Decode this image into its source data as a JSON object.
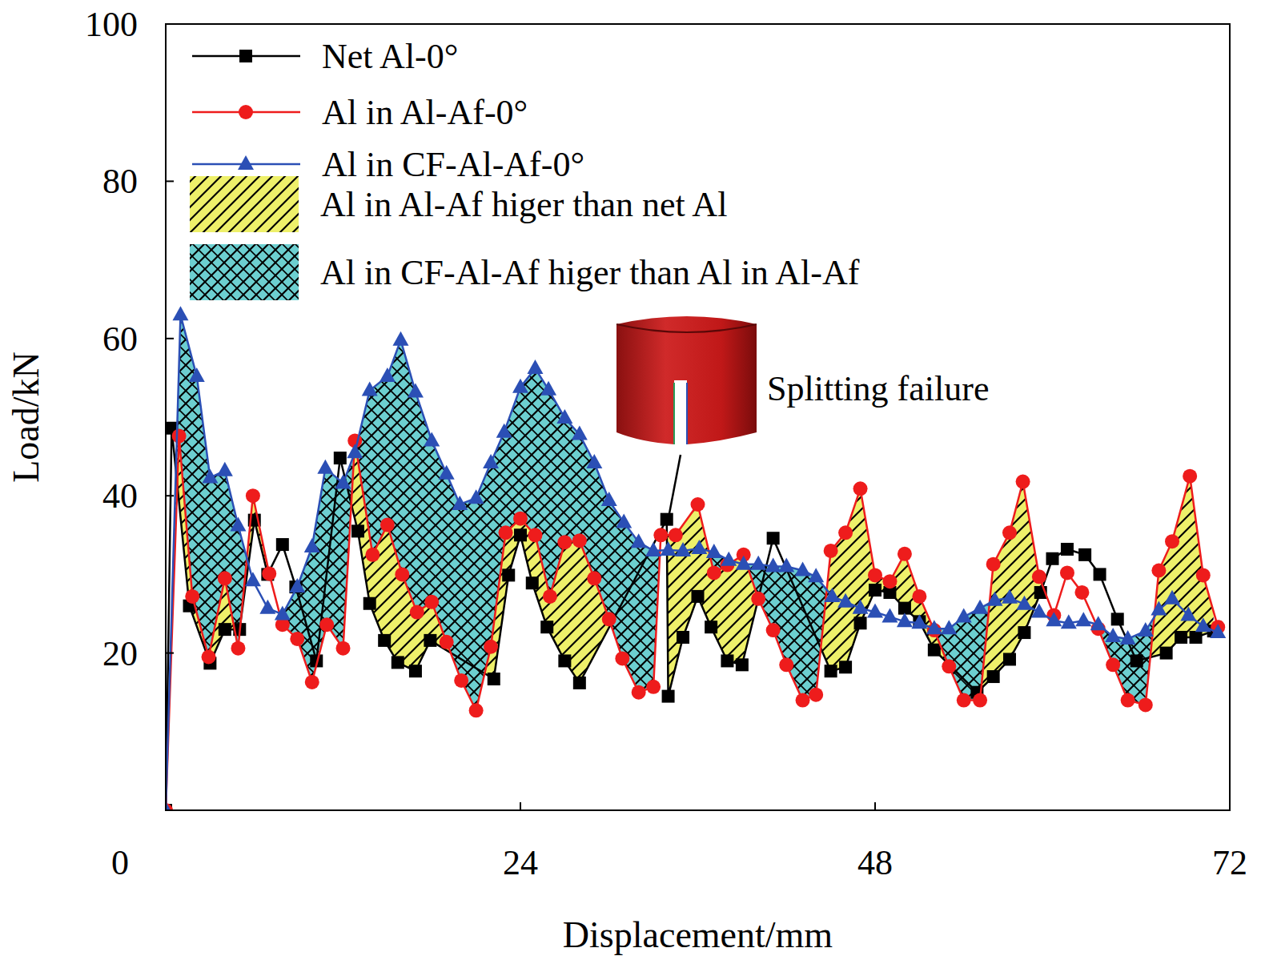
{
  "chart_data": {
    "type": "line",
    "x_label": "Displacement/mm",
    "y_label": "Load/kN",
    "xlim": [
      0,
      72
    ],
    "xticks": [
      0,
      24,
      48,
      72
    ],
    "ylim": [
      0,
      100
    ],
    "yticks": [
      20,
      40,
      60,
      80,
      100
    ],
    "legend": "upper left",
    "grid": false,
    "series": [
      {
        "name": "Net Al-0°",
        "color": "#000000",
        "marker": "square",
        "x": [
          0,
          0.4,
          1.6,
          3.0,
          4.0,
          5.0,
          6.0,
          6.9,
          7.9,
          8.8,
          10.2,
          11.8,
          13.0,
          13.8,
          14.8,
          15.7,
          16.9,
          17.9,
          22.2,
          23.2,
          24.0,
          24.8,
          25.8,
          27.0,
          28.0,
          33.9,
          34.0,
          35.0,
          36.0,
          36.9,
          38.0,
          39.0,
          41.1,
          45.0,
          46.0,
          47.0,
          48.0,
          49.0,
          50.0,
          51.0,
          52.0,
          54.9,
          56.0,
          57.1,
          58.1,
          59.2,
          60.0,
          61.0,
          62.2,
          63.2,
          64.4,
          65.7,
          67.7,
          68.7,
          69.7,
          70.9
        ],
        "values": [
          0,
          48.6,
          26,
          18.7,
          23,
          23,
          36.9,
          30,
          33.8,
          28.4,
          19,
          44.8,
          35.5,
          26.3,
          21.6,
          18.8,
          17.7,
          21.6,
          16.7,
          29.9,
          35,
          28.9,
          23.3,
          19,
          16.2,
          37,
          14.5,
          22,
          27.2,
          23.3,
          19,
          18.5,
          34.6,
          17.7,
          18.2,
          23.8,
          28,
          27.7,
          25.7,
          24,
          20.4,
          15,
          17,
          19.2,
          22.6,
          27.7,
          32,
          33.2,
          32.5,
          30,
          24.3,
          19,
          20,
          22,
          22,
          22.8
        ]
      },
      {
        "name": "Al in Al-Af-0°",
        "color": "#ee1c1c",
        "marker": "circle",
        "x": [
          0,
          0.9,
          1.8,
          2.9,
          4.0,
          4.9,
          5.9,
          7.0,
          7.9,
          8.9,
          9.9,
          10.9,
          12.0,
          12.8,
          14.0,
          15.0,
          16.0,
          17.0,
          18.0,
          19.0,
          20.0,
          21.0,
          22.0,
          23.0,
          24.0,
          25.0,
          26.0,
          27.0,
          28.0,
          29.0,
          30.0,
          30.9,
          32.0,
          33.0,
          33.5,
          34.5,
          36.0,
          37.1,
          38.0,
          39.1,
          40.1,
          41.1,
          42.0,
          43.1,
          44.0,
          45.0,
          46.0,
          47.0,
          48.0,
          49.0,
          50.0,
          51.0,
          52.0,
          53.0,
          54.0,
          55.1,
          56.0,
          57.1,
          58.0,
          59.1,
          60.1,
          61.0,
          62.0,
          63.1,
          64.1,
          65.1,
          66.3,
          67.2,
          68.1,
          69.3,
          70.2,
          71.2
        ],
        "values": [
          0,
          47.6,
          27.2,
          19.5,
          29.5,
          20.6,
          40,
          30.1,
          23.6,
          21.8,
          16.3,
          23.6,
          20.6,
          47,
          32.5,
          36.3,
          30,
          25.2,
          26.5,
          21.4,
          16.5,
          12.7,
          20.8,
          35.3,
          37.1,
          35,
          27.2,
          34.1,
          34.3,
          29.5,
          24.3,
          19.3,
          15,
          15.7,
          35,
          35,
          38.9,
          30.2,
          31.2,
          32.5,
          26.9,
          22.9,
          18.5,
          14,
          14.7,
          33,
          35.3,
          40.9,
          29.9,
          29.1,
          32.6,
          27.2,
          22.9,
          18.3,
          14,
          14,
          31.3,
          35.3,
          41.8,
          29.7,
          24.8,
          30.2,
          27.7,
          23.1,
          18.5,
          14,
          13.4,
          30.5,
          34.2,
          42.5,
          29.9,
          23.3
        ]
      },
      {
        "name": "Al in CF-Al-Af-0°",
        "color": "#2b4fb5",
        "marker": "triangle",
        "x": [
          0,
          1.0,
          2.1,
          3.0,
          4.0,
          4.9,
          5.9,
          6.9,
          7.9,
          8.9,
          9.9,
          10.8,
          12.0,
          12.8,
          13.8,
          15.0,
          15.9,
          16.9,
          18.0,
          19.0,
          19.9,
          21.0,
          22.0,
          22.9,
          24.0,
          25.0,
          25.9,
          27.0,
          28.0,
          29.0,
          30.0,
          31.0,
          32.0,
          33.0,
          34.0,
          35.0,
          36.1,
          37.1,
          38.1,
          39.1,
          40.1,
          41.1,
          42.0,
          43.1,
          44.0,
          45.1,
          46.0,
          47.0,
          48.0,
          49.0,
          50.0,
          51.0,
          52.0,
          53.0,
          54.0,
          55.1,
          56.1,
          57.1,
          58.1,
          59.1,
          60.1,
          61.1,
          62.1,
          63.1,
          64.1,
          65.1,
          66.3,
          67.2,
          68.1,
          69.2,
          70.2,
          71.2
        ],
        "values": [
          0,
          63,
          55.2,
          42.3,
          43.2,
          36.2,
          29.2,
          25.7,
          24.9,
          28.4,
          33.5,
          43.5,
          41.6,
          45.5,
          53.4,
          55.2,
          59.8,
          53.2,
          47,
          42.8,
          38.9,
          39.7,
          44.2,
          48.1,
          53.8,
          56.2,
          53.5,
          49.9,
          47.8,
          44.2,
          39.4,
          36.6,
          34.1,
          33,
          33.1,
          33,
          33.3,
          32.8,
          31.8,
          31.3,
          31.3,
          31,
          31,
          30.5,
          29.7,
          27.2,
          26.5,
          25.7,
          25.2,
          24.6,
          24,
          23.8,
          23.1,
          23.1,
          24.6,
          25.7,
          26.7,
          27,
          26.2,
          25.2,
          24.1,
          23.8,
          24.1,
          23.6,
          22.1,
          21.8,
          22.8,
          25.5,
          26.9,
          24.8,
          23.4,
          22.6
        ]
      }
    ],
    "fills": [
      {
        "name": "Al in Al-Af higer than net Al",
        "color": "#eef06a",
        "line_style": "hatch",
        "between": [
          "Al in Al-Af-0°",
          "Net Al-0°"
        ]
      },
      {
        "name": "Al in CF-Al-Af higer than Al in Al-Af",
        "color": "#6ccfd0",
        "line_style": "crosshatch",
        "between": [
          "Al in CF-Al-Af-0°",
          "Al in Al-Af-0°"
        ]
      }
    ],
    "annotations": [
      {
        "text": "Splitting failure",
        "x": 34,
        "y": 37
      }
    ]
  }
}
